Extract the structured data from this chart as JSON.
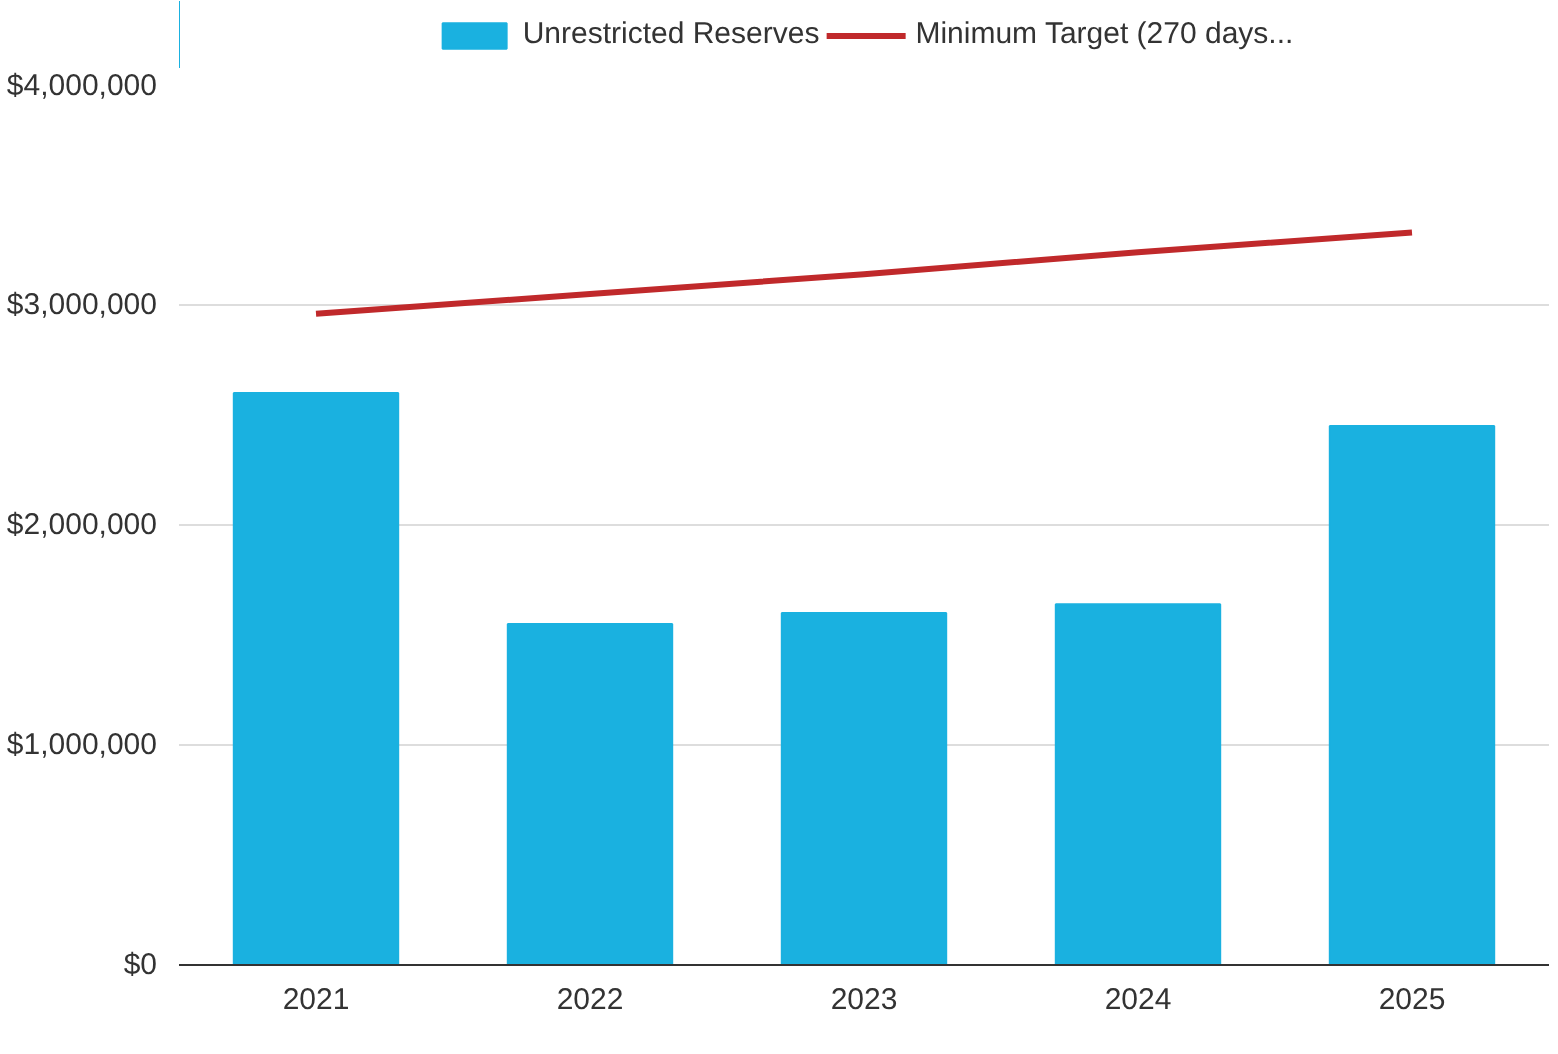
{
  "chart_data": {
    "type": "bar",
    "categories": [
      "2021",
      "2022",
      "2023",
      "2024",
      "2025"
    ],
    "series": [
      {
        "name": "Unrestricted Reserves",
        "color": "#1ab1e0",
        "values": [
          2600000,
          1550000,
          1600000,
          1640000,
          2450000
        ]
      },
      {
        "name": "Minimum Target (270 days...",
        "type": "line",
        "color": "#c0292b",
        "values": [
          2960000,
          3050000,
          3140000,
          3240000,
          3330000
        ]
      }
    ],
    "ylim": [
      0,
      4000000
    ],
    "yticks": [
      {
        "value": 0,
        "label": "$0"
      },
      {
        "value": 1000000,
        "label": "$1,000,000"
      },
      {
        "value": 2000000,
        "label": "$2,000,000"
      },
      {
        "value": 3000000,
        "label": "$3,000,000"
      },
      {
        "value": 4000000,
        "label": "$4,000,000"
      }
    ],
    "grid": "y",
    "legend": "top",
    "marker": "none",
    "line_style": "solid"
  }
}
